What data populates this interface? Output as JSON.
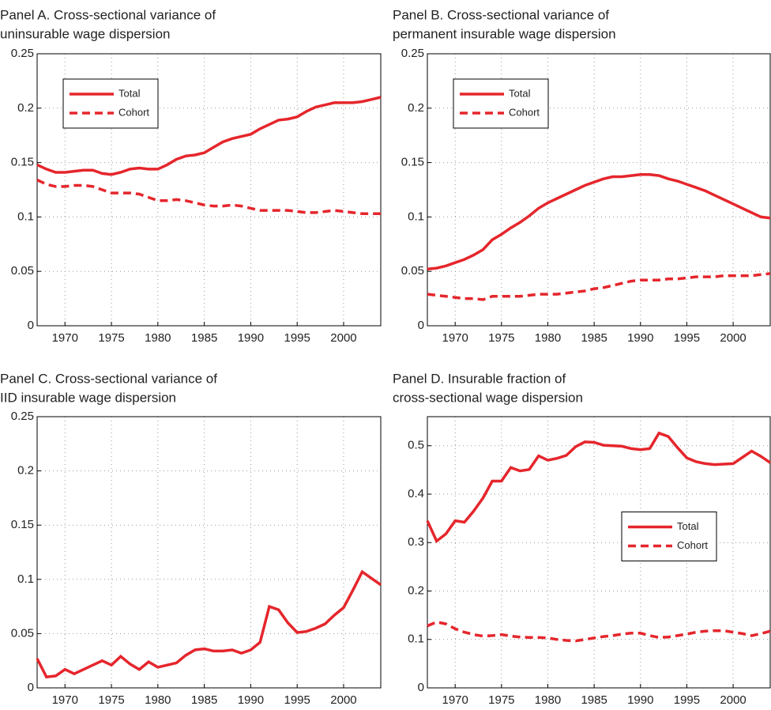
{
  "chart_data": [
    {
      "type": "line",
      "title": [
        "Panel A. Cross-sectional variance of",
        "uninsurable wage dispersion"
      ],
      "x": [
        1967,
        1968,
        1969,
        1970,
        1971,
        1972,
        1973,
        1974,
        1975,
        1976,
        1977,
        1978,
        1979,
        1980,
        1981,
        1982,
        1983,
        1984,
        1985,
        1986,
        1987,
        1988,
        1989,
        1990,
        1991,
        1992,
        1993,
        1994,
        1995,
        1996,
        1997,
        1998,
        1999,
        2000,
        2001,
        2002,
        2003,
        2004
      ],
      "xlim": [
        1967,
        2004
      ],
      "xticks": [
        1970,
        1975,
        1980,
        1985,
        1990,
        1995,
        2000
      ],
      "ylim": [
        0,
        0.25
      ],
      "yticks": [
        0,
        0.05,
        0.1,
        0.15,
        0.2,
        0.25
      ],
      "grid": true,
      "legend": "upper left",
      "series": [
        {
          "name": "Total",
          "color": "#e5262c",
          "style": "solid",
          "values": [
            0.148,
            0.144,
            0.141,
            0.141,
            0.142,
            0.143,
            0.143,
            0.14,
            0.139,
            0.141,
            0.144,
            0.145,
            0.144,
            0.144,
            0.148,
            0.153,
            0.156,
            0.157,
            0.159,
            0.164,
            0.169,
            0.172,
            0.174,
            0.176,
            0.181,
            0.185,
            0.189,
            0.19,
            0.192,
            0.197,
            0.201,
            0.203,
            0.205,
            0.205,
            0.205,
            0.206,
            0.208,
            0.21
          ]
        },
        {
          "name": "Cohort",
          "color": "#e5262c",
          "style": "dashed",
          "values": [
            0.134,
            0.13,
            0.128,
            0.128,
            0.129,
            0.129,
            0.128,
            0.125,
            0.122,
            0.122,
            0.122,
            0.121,
            0.118,
            0.115,
            0.115,
            0.116,
            0.115,
            0.113,
            0.111,
            0.11,
            0.11,
            0.111,
            0.11,
            0.108,
            0.106,
            0.106,
            0.106,
            0.106,
            0.105,
            0.104,
            0.104,
            0.105,
            0.106,
            0.105,
            0.104,
            0.103,
            0.103,
            0.103
          ]
        }
      ]
    },
    {
      "type": "line",
      "title": [
        "Panel B. Cross-sectional variance of",
        "permanent insurable wage dispersion"
      ],
      "x": [
        1967,
        1968,
        1969,
        1970,
        1971,
        1972,
        1973,
        1974,
        1975,
        1976,
        1977,
        1978,
        1979,
        1980,
        1981,
        1982,
        1983,
        1984,
        1985,
        1986,
        1987,
        1988,
        1989,
        1990,
        1991,
        1992,
        1993,
        1994,
        1995,
        1996,
        1997,
        1998,
        1999,
        2000,
        2001,
        2002,
        2003,
        2004
      ],
      "xlim": [
        1967,
        2004
      ],
      "xticks": [
        1970,
        1975,
        1980,
        1985,
        1990,
        1995,
        2000
      ],
      "ylim": [
        0,
        0.25
      ],
      "yticks": [
        0,
        0.05,
        0.1,
        0.15,
        0.2,
        0.25
      ],
      "grid": true,
      "legend": "upper left",
      "series": [
        {
          "name": "Total",
          "color": "#e5262c",
          "style": "solid",
          "values": [
            0.052,
            0.053,
            0.055,
            0.058,
            0.061,
            0.065,
            0.07,
            0.079,
            0.084,
            0.09,
            0.095,
            0.101,
            0.108,
            0.113,
            0.117,
            0.121,
            0.125,
            0.129,
            0.132,
            0.135,
            0.137,
            0.137,
            0.138,
            0.139,
            0.139,
            0.138,
            0.135,
            0.133,
            0.13,
            0.127,
            0.124,
            0.12,
            0.116,
            0.112,
            0.108,
            0.104,
            0.1,
            0.099
          ]
        },
        {
          "name": "Cohort",
          "color": "#e5262c",
          "style": "dashed",
          "values": [
            0.029,
            0.028,
            0.027,
            0.026,
            0.025,
            0.025,
            0.024,
            0.027,
            0.027,
            0.027,
            0.027,
            0.028,
            0.029,
            0.029,
            0.029,
            0.03,
            0.031,
            0.032,
            0.034,
            0.035,
            0.037,
            0.039,
            0.041,
            0.042,
            0.042,
            0.042,
            0.043,
            0.043,
            0.044,
            0.045,
            0.045,
            0.045,
            0.046,
            0.046,
            0.046,
            0.046,
            0.047,
            0.048
          ]
        }
      ]
    },
    {
      "type": "line",
      "title": [
        "Panel C. Cross-sectional variance of",
        "IID insurable wage dispersion"
      ],
      "x": [
        1967,
        1968,
        1969,
        1970,
        1971,
        1972,
        1973,
        1974,
        1975,
        1976,
        1977,
        1978,
        1979,
        1980,
        1981,
        1982,
        1983,
        1984,
        1985,
        1986,
        1987,
        1988,
        1989,
        1990,
        1991,
        1992,
        1993,
        1994,
        1995,
        1996,
        1997,
        1998,
        1999,
        2000,
        2001,
        2002,
        2003,
        2004
      ],
      "xlim": [
        1967,
        2004
      ],
      "xticks": [
        1970,
        1975,
        1980,
        1985,
        1990,
        1995,
        2000
      ],
      "ylim": [
        0,
        0.25
      ],
      "yticks": [
        0,
        0.05,
        0.1,
        0.15,
        0.2,
        0.25
      ],
      "grid": true,
      "series": [
        {
          "color": "#e5262c",
          "style": "solid",
          "values": [
            0.027,
            0.01,
            0.011,
            0.017,
            0.013,
            0.017,
            0.021,
            0.025,
            0.021,
            0.029,
            0.022,
            0.017,
            0.024,
            0.019,
            0.021,
            0.023,
            0.03,
            0.035,
            0.036,
            0.034,
            0.034,
            0.035,
            0.032,
            0.035,
            0.042,
            0.075,
            0.072,
            0.06,
            0.051,
            0.052,
            0.055,
            0.059,
            0.067,
            0.074,
            0.09,
            0.107,
            0.101,
            0.095
          ]
        }
      ]
    },
    {
      "type": "line",
      "title": [
        "Panel D. Insurable fraction of",
        "cross-sectional wage dispersion"
      ],
      "x": [
        1967,
        1968,
        1969,
        1970,
        1971,
        1972,
        1973,
        1974,
        1975,
        1976,
        1977,
        1978,
        1979,
        1980,
        1981,
        1982,
        1983,
        1984,
        1985,
        1986,
        1987,
        1988,
        1989,
        1990,
        1991,
        1992,
        1993,
        1994,
        1995,
        1996,
        1997,
        1998,
        1999,
        2000,
        2001,
        2002,
        2003,
        2004
      ],
      "xlim": [
        1967,
        2004
      ],
      "xticks": [
        1970,
        1975,
        1980,
        1985,
        1990,
        1995,
        2000
      ],
      "ylim": [
        0,
        0.56
      ],
      "yticks": [
        0,
        0.1,
        0.2,
        0.3,
        0.4,
        0.5
      ],
      "grid": true,
      "legend": "center right",
      "series": [
        {
          "name": "Total",
          "color": "#e5262c",
          "style": "solid",
          "values": [
            0.345,
            0.303,
            0.318,
            0.345,
            0.342,
            0.365,
            0.392,
            0.427,
            0.427,
            0.455,
            0.448,
            0.451,
            0.479,
            0.47,
            0.474,
            0.48,
            0.498,
            0.508,
            0.507,
            0.501,
            0.5,
            0.499,
            0.494,
            0.492,
            0.494,
            0.526,
            0.519,
            0.496,
            0.475,
            0.467,
            0.463,
            0.461,
            0.462,
            0.463,
            0.476,
            0.489,
            0.478,
            0.465
          ]
        },
        {
          "name": "Cohort",
          "color": "#e5262c",
          "style": "dashed",
          "values": [
            0.128,
            0.136,
            0.132,
            0.122,
            0.115,
            0.11,
            0.107,
            0.108,
            0.11,
            0.107,
            0.105,
            0.104,
            0.104,
            0.103,
            0.1,
            0.098,
            0.097,
            0.1,
            0.103,
            0.106,
            0.108,
            0.111,
            0.113,
            0.113,
            0.108,
            0.104,
            0.105,
            0.108,
            0.111,
            0.115,
            0.117,
            0.118,
            0.118,
            0.115,
            0.112,
            0.108,
            0.112,
            0.117
          ]
        }
      ]
    }
  ]
}
